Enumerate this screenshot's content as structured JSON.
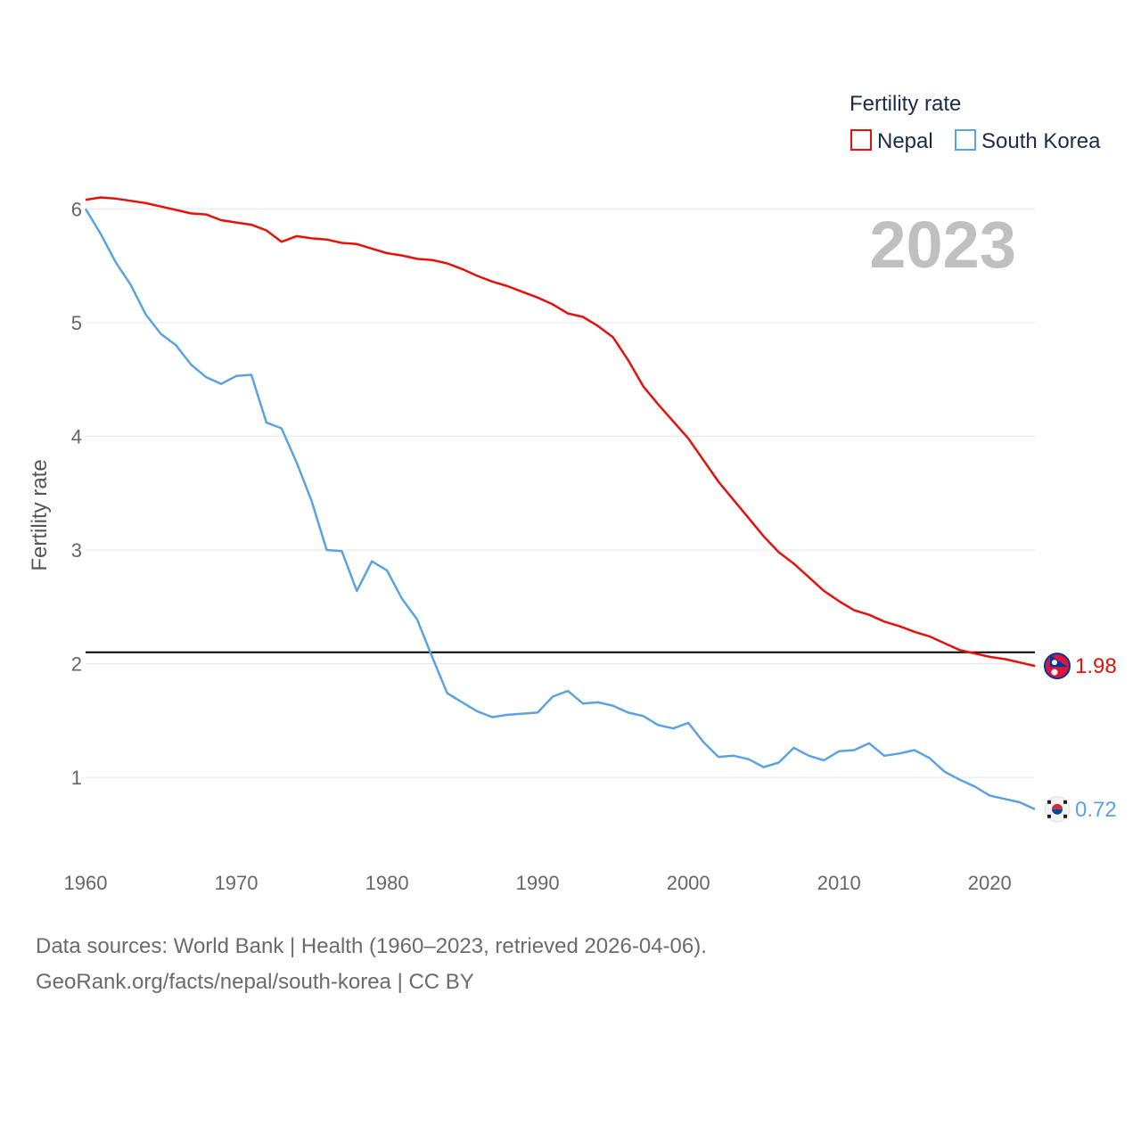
{
  "chart_data": {
    "type": "line",
    "year_display": "2023",
    "ylabel": "Fertility rate",
    "xlabel": "",
    "xlim": [
      1960,
      2023
    ],
    "ylim": [
      0.35,
      6.3
    ],
    "x_ticks": [
      "1960",
      "1970",
      "1980",
      "1990",
      "2000",
      "2010",
      "2020"
    ],
    "y_ticks": [
      "1",
      "2",
      "3",
      "4",
      "5",
      "6"
    ],
    "grid": true,
    "reference_line": {
      "value": 2.1,
      "color": "#000000"
    },
    "legend": {
      "title": "Fertility rate",
      "position": "top-right",
      "items": [
        {
          "label": "Nepal",
          "color": "#e3120b"
        },
        {
          "label": "South Korea",
          "color": "#5ba3e0"
        }
      ]
    },
    "x": [
      1960,
      1961,
      1962,
      1963,
      1964,
      1965,
      1966,
      1967,
      1968,
      1969,
      1970,
      1971,
      1972,
      1973,
      1974,
      1975,
      1976,
      1977,
      1978,
      1979,
      1980,
      1981,
      1982,
      1983,
      1984,
      1985,
      1986,
      1987,
      1988,
      1989,
      1990,
      1991,
      1992,
      1993,
      1994,
      1995,
      1996,
      1997,
      1998,
      1999,
      2000,
      2001,
      2002,
      2003,
      2004,
      2005,
      2006,
      2007,
      2008,
      2009,
      2010,
      2011,
      2012,
      2013,
      2014,
      2015,
      2016,
      2017,
      2018,
      2019,
      2020,
      2021,
      2022,
      2023
    ],
    "series": [
      {
        "name": "Nepal",
        "color": "#e3120b",
        "end_label": "1.98",
        "flag_icon": "nepal-flag-icon",
        "values": [
          6.08,
          6.1,
          6.09,
          6.07,
          6.05,
          6.02,
          5.99,
          5.96,
          5.95,
          5.9,
          5.88,
          5.86,
          5.81,
          5.71,
          5.76,
          5.74,
          5.73,
          5.7,
          5.69,
          5.65,
          5.61,
          5.59,
          5.56,
          5.55,
          5.52,
          5.47,
          5.41,
          5.36,
          5.32,
          5.27,
          5.22,
          5.16,
          5.08,
          5.05,
          4.97,
          4.87,
          4.67,
          4.44,
          4.28,
          4.13,
          3.98,
          3.79,
          3.6,
          3.44,
          3.28,
          3.12,
          2.98,
          2.88,
          2.76,
          2.64,
          2.55,
          2.47,
          2.43,
          2.37,
          2.33,
          2.28,
          2.24,
          2.18,
          2.12,
          2.09,
          2.06,
          2.04,
          2.01,
          1.98
        ]
      },
      {
        "name": "South Korea",
        "color": "#5ba3e0",
        "end_label": "0.72",
        "flag_icon": "south-korea-flag-icon",
        "values": [
          6.0,
          5.78,
          5.53,
          5.33,
          5.07,
          4.9,
          4.8,
          4.63,
          4.52,
          4.46,
          4.53,
          4.54,
          4.12,
          4.07,
          3.77,
          3.43,
          3.0,
          2.99,
          2.64,
          2.9,
          2.82,
          2.57,
          2.39,
          2.06,
          1.74,
          1.66,
          1.58,
          1.53,
          1.55,
          1.56,
          1.57,
          1.71,
          1.76,
          1.65,
          1.66,
          1.63,
          1.57,
          1.54,
          1.46,
          1.43,
          1.48,
          1.31,
          1.18,
          1.19,
          1.16,
          1.09,
          1.13,
          1.26,
          1.19,
          1.15,
          1.23,
          1.24,
          1.3,
          1.19,
          1.21,
          1.24,
          1.17,
          1.05,
          0.98,
          0.92,
          0.84,
          0.81,
          0.78,
          0.72
        ]
      }
    ]
  },
  "footer": {
    "line1": "Data sources: World Bank | Health (1960–2023, retrieved 2026-04-06).",
    "line2": "GeoRank.org/facts/nepal/south-korea | CC BY"
  }
}
